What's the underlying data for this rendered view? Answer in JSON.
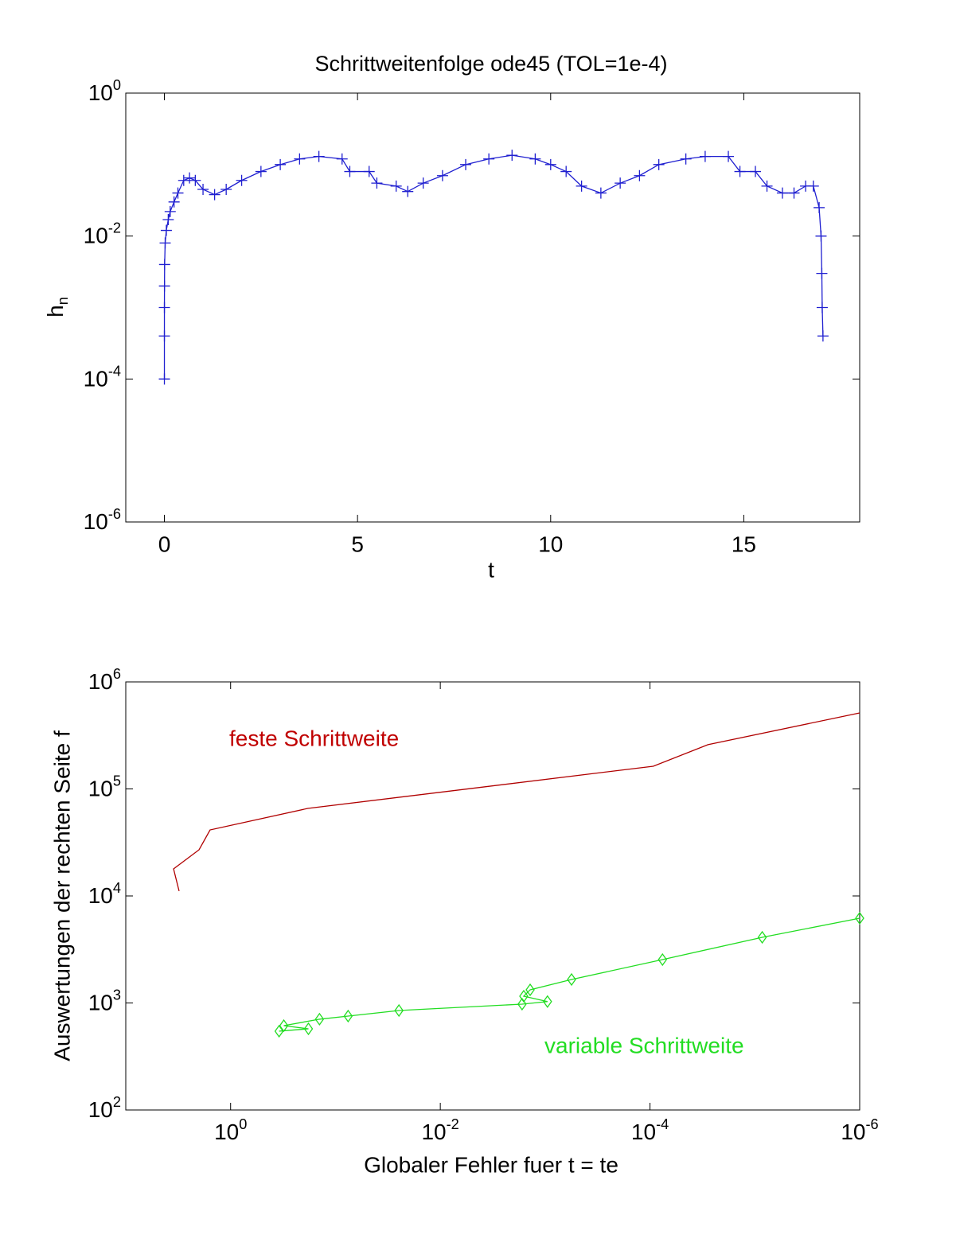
{
  "chart_data": [
    {
      "type": "line",
      "title": "Schrittweitenfolge  ode45  (TOL=1e-4)",
      "xlabel": "t",
      "ylabel": "h_n",
      "xscale": "linear",
      "yscale": "log",
      "xlim": [
        -1,
        18
      ],
      "ylim": [
        1e-06,
        1
      ],
      "xticks": [
        0,
        5,
        10,
        15
      ],
      "yticks": [
        {
          "value": 1e-06,
          "label": "10^-6"
        },
        {
          "value": 0.0001,
          "label": "10^-4"
        },
        {
          "value": 0.01,
          "label": "10^-2"
        },
        {
          "value": 1,
          "label": "10^0"
        }
      ],
      "series": [
        {
          "color": "#1f1fd0",
          "marker": "plus",
          "x": [
            0,
            0.0001,
            0.0005,
            0.002,
            0.006,
            0.02,
            0.05,
            0.1,
            0.15,
            0.25,
            0.35,
            0.5,
            0.65,
            0.8,
            1.0,
            1.3,
            1.6,
            2.0,
            2.5,
            3.0,
            3.5,
            4.0,
            4.6,
            4.8,
            5.3,
            5.5,
            6.0,
            6.3,
            6.7,
            7.2,
            7.8,
            8.4,
            9.0,
            9.6,
            10.0,
            10.4,
            10.8,
            11.3,
            11.8,
            12.3,
            12.8,
            13.5,
            14.0,
            14.6,
            14.9,
            15.3,
            15.6,
            16.0,
            16.3,
            16.6,
            16.8,
            16.95,
            17.0,
            17.02,
            17.03,
            17.05
          ],
          "values": [
            0.0001,
            0.0004,
            0.001,
            0.002,
            0.004,
            0.008,
            0.012,
            0.017,
            0.022,
            0.03,
            0.04,
            0.06,
            0.065,
            0.06,
            0.045,
            0.038,
            0.045,
            0.06,
            0.08,
            0.1,
            0.12,
            0.13,
            0.12,
            0.08,
            0.08,
            0.055,
            0.05,
            0.042,
            0.055,
            0.07,
            0.1,
            0.12,
            0.135,
            0.12,
            0.1,
            0.08,
            0.05,
            0.04,
            0.055,
            0.07,
            0.1,
            0.12,
            0.13,
            0.13,
            0.08,
            0.08,
            0.05,
            0.04,
            0.04,
            0.05,
            0.05,
            0.025,
            0.01,
            0.003,
            0.001,
            0.0004
          ]
        }
      ]
    },
    {
      "type": "line",
      "xlabel": "Globaler Fehler fuer  t = te",
      "ylabel": "Auswertungen der rechten Seite f",
      "xscale": "log",
      "yscale": "log",
      "xlim": [
        10,
        1e-06
      ],
      "ylim": [
        100,
        1000000
      ],
      "xticks": [
        {
          "value": 1,
          "label": "10^0"
        },
        {
          "value": 0.01,
          "label": "10^-2"
        },
        {
          "value": 0.0001,
          "label": "10^-4"
        },
        {
          "value": 1e-06,
          "label": "10^-6"
        }
      ],
      "yticks": [
        {
          "value": 100,
          "label": "10^2"
        },
        {
          "value": 1000,
          "label": "10^3"
        },
        {
          "value": 10000,
          "label": "10^4"
        },
        {
          "value": 100000,
          "label": "10^5"
        },
        {
          "value": 1000000,
          "label": "10^6"
        }
      ],
      "annotations": [
        {
          "text": "feste Schrittweite",
          "color": "#c00000"
        },
        {
          "text": "variable Schrittweite",
          "color": "#22dd22"
        }
      ],
      "series": [
        {
          "color": "#b00000",
          "marker": "none",
          "x": [
            3.1,
            3.5,
            2.0,
            1.57,
            0.184,
            9.3e-05,
            2.8e-05,
            1e-06
          ],
          "values": [
            11100,
            17900,
            27000,
            41400,
            65700,
            163000,
            259000,
            513000
          ]
        },
        {
          "color": "#22dd22",
          "marker": "diamond",
          "x": [
            0.345,
            0.181,
            0.311,
            0.142,
            0.0757,
            0.0248,
            0.00166,
            0.00095,
            0.0016,
            0.00139,
            0.00056,
            7.6e-05,
            8.5e-06,
            1e-06
          ],
          "values": [
            545,
            573,
            614,
            705,
            754,
            850,
            975,
            1030,
            1157,
            1327,
            1657,
            2543,
            4105,
            6190
          ]
        }
      ]
    }
  ]
}
